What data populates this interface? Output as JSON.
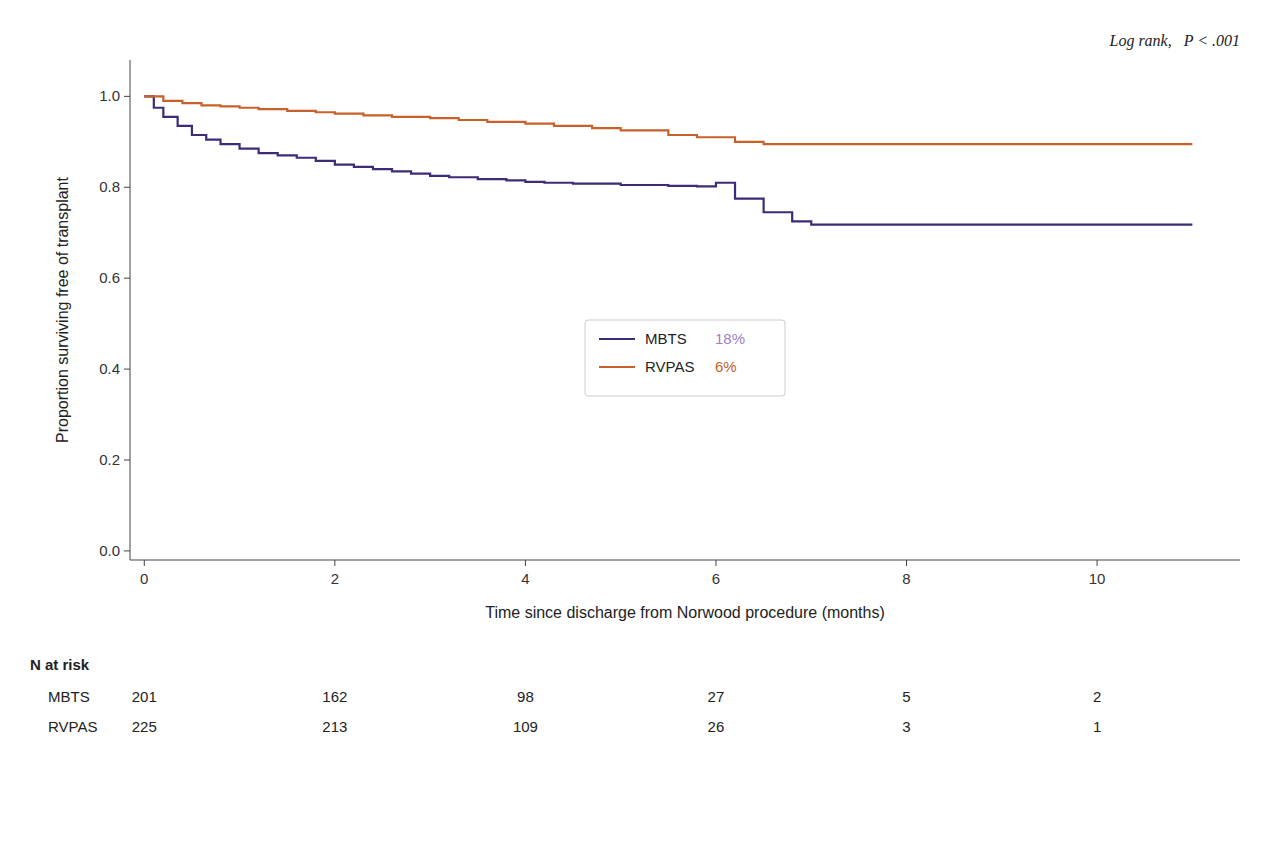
{
  "chart_data": {
    "type": "step",
    "title": "Log rank,   P < .001",
    "x_label": "Time since discharge from Norwood procedure (months)",
    "y_label": "Proportion surviving free of transplant",
    "xlim": [
      -0.15,
      11.5
    ],
    "ylim": [
      -0.02,
      1.08
    ],
    "xticks": [
      0,
      2,
      4,
      6,
      8,
      10
    ],
    "yticks": [
      {
        "value": 0.0,
        "label": "0.0"
      },
      0.2,
      0.4,
      0.6,
      0.8,
      {
        "value": 1.0,
        "label": "1.0"
      }
    ],
    "grid": false,
    "legend": "center",
    "n_at_risk_label": "N at risk",
    "n_at_risk_times": [
      0,
      2,
      4,
      6,
      8,
      10
    ],
    "series": [
      {
        "name": "MBTS",
        "color": "#3d2b7a",
        "annotation": "18%",
        "annotation_color": "#a07fc8",
        "x": [
          0,
          0.1,
          0.2,
          0.35,
          0.5,
          0.65,
          0.8,
          1.0,
          1.2,
          1.4,
          1.6,
          1.8,
          2.0,
          2.2,
          2.4,
          2.6,
          2.8,
          3.0,
          3.2,
          3.5,
          3.8,
          4.0,
          4.2,
          4.5,
          5.0,
          5.5,
          5.8,
          6.0,
          6.2,
          6.5,
          6.8,
          7.0,
          11.0
        ],
        "values": [
          1.0,
          0.975,
          0.955,
          0.935,
          0.915,
          0.905,
          0.895,
          0.885,
          0.875,
          0.87,
          0.865,
          0.858,
          0.85,
          0.845,
          0.84,
          0.835,
          0.83,
          0.825,
          0.822,
          0.818,
          0.815,
          0.812,
          0.81,
          0.808,
          0.805,
          0.803,
          0.802,
          0.81,
          0.775,
          0.745,
          0.725,
          0.718,
          0.718
        ],
        "n_at_risk": [
          201,
          162,
          98,
          27,
          5,
          2
        ]
      },
      {
        "name": "RVPAS",
        "color": "#c8602a",
        "annotation": "6%",
        "annotation_color": "#c8602a",
        "x": [
          0,
          0.2,
          0.4,
          0.6,
          0.8,
          1.0,
          1.2,
          1.5,
          1.8,
          2.0,
          2.3,
          2.6,
          3.0,
          3.3,
          3.6,
          4.0,
          4.3,
          4.7,
          5.0,
          5.5,
          5.8,
          6.0,
          6.2,
          6.5,
          11.0
        ],
        "values": [
          1.0,
          0.99,
          0.985,
          0.98,
          0.978,
          0.975,
          0.972,
          0.968,
          0.965,
          0.962,
          0.958,
          0.955,
          0.952,
          0.948,
          0.944,
          0.94,
          0.935,
          0.93,
          0.925,
          0.915,
          0.91,
          0.91,
          0.9,
          0.895,
          0.895
        ],
        "n_at_risk": [
          225,
          213,
          109,
          26,
          3,
          1
        ]
      }
    ]
  }
}
